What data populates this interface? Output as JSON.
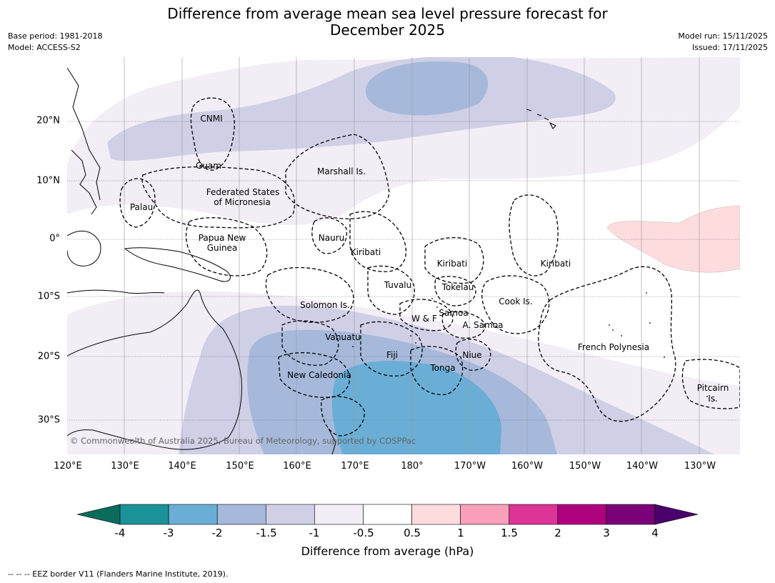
{
  "header": {
    "title_line1": "Difference from average mean sea level pressure forecast for",
    "title_line2": "December 2025",
    "base_period": "Base period: 1981-2018",
    "model": "Model: ACCESS-S2",
    "model_run": "Model run: 15/11/2025",
    "issued": "Issued: 17/11/2025"
  },
  "map": {
    "lon_labels": [
      "120°E",
      "130°E",
      "140°E",
      "150°E",
      "160°E",
      "170°E",
      "180°",
      "170°W",
      "160°W",
      "150°W",
      "140°W",
      "130°W"
    ],
    "lat_labels": [
      "20°N",
      "10°N",
      "0°",
      "10°S",
      "20°S",
      "30°S"
    ],
    "regions": {
      "cnmi": "CNMI",
      "guam": "Guam",
      "marshall": "Marshall Is.",
      "fsm_1": "Federated States",
      "fsm_2": "of Micronesia",
      "palau": "Palau",
      "png_1": "Papua New",
      "png_2": "Guinea",
      "nauru": "Nauru",
      "kiribati_w": "Kiribati",
      "kiribati_c": "Kiribati",
      "kiribati_e": "Kiribati",
      "tuvalu": "Tuvalu",
      "tokelau": "Tokelau",
      "cook": "Cook Is.",
      "solomon": "Solomon Is.",
      "wf": "W & F",
      "samoa": "Samoa",
      "asamoa": "A. Samoa",
      "vanuatu": "Vanuatu",
      "fiji": "Fiji",
      "niue": "Niue",
      "tonga": "Tonga",
      "french_polynesia": "French Polynesia",
      "new_caledonia": "New Caledonia",
      "pitcairn_1": "Pitcairn",
      "pitcairn_2": "Is."
    },
    "copyright": "© Commonwealth of Australia 2025, Bureau of Meteorology, supported by COSPPac"
  },
  "colorbar": {
    "ticks": [
      "-4",
      "-3",
      "-2",
      "-1.5",
      "-1",
      "-0.5",
      "0.5",
      "1",
      "1.5",
      "2",
      "3",
      "4"
    ],
    "colors": [
      "#0b6b5c",
      "#1a9299",
      "#6aaed6",
      "#a6b9db",
      "#cfd0e6",
      "#f3edf6",
      "#ffffff",
      "#fddcde",
      "#f8a0ba",
      "#dd3497",
      "#ae017e",
      "#7a0177",
      "#49006a"
    ],
    "label": "Difference from average (hPa)"
  },
  "footnote": "--  --  -- EEZ border V11 (Flanders Marine Institute, 2019)."
}
